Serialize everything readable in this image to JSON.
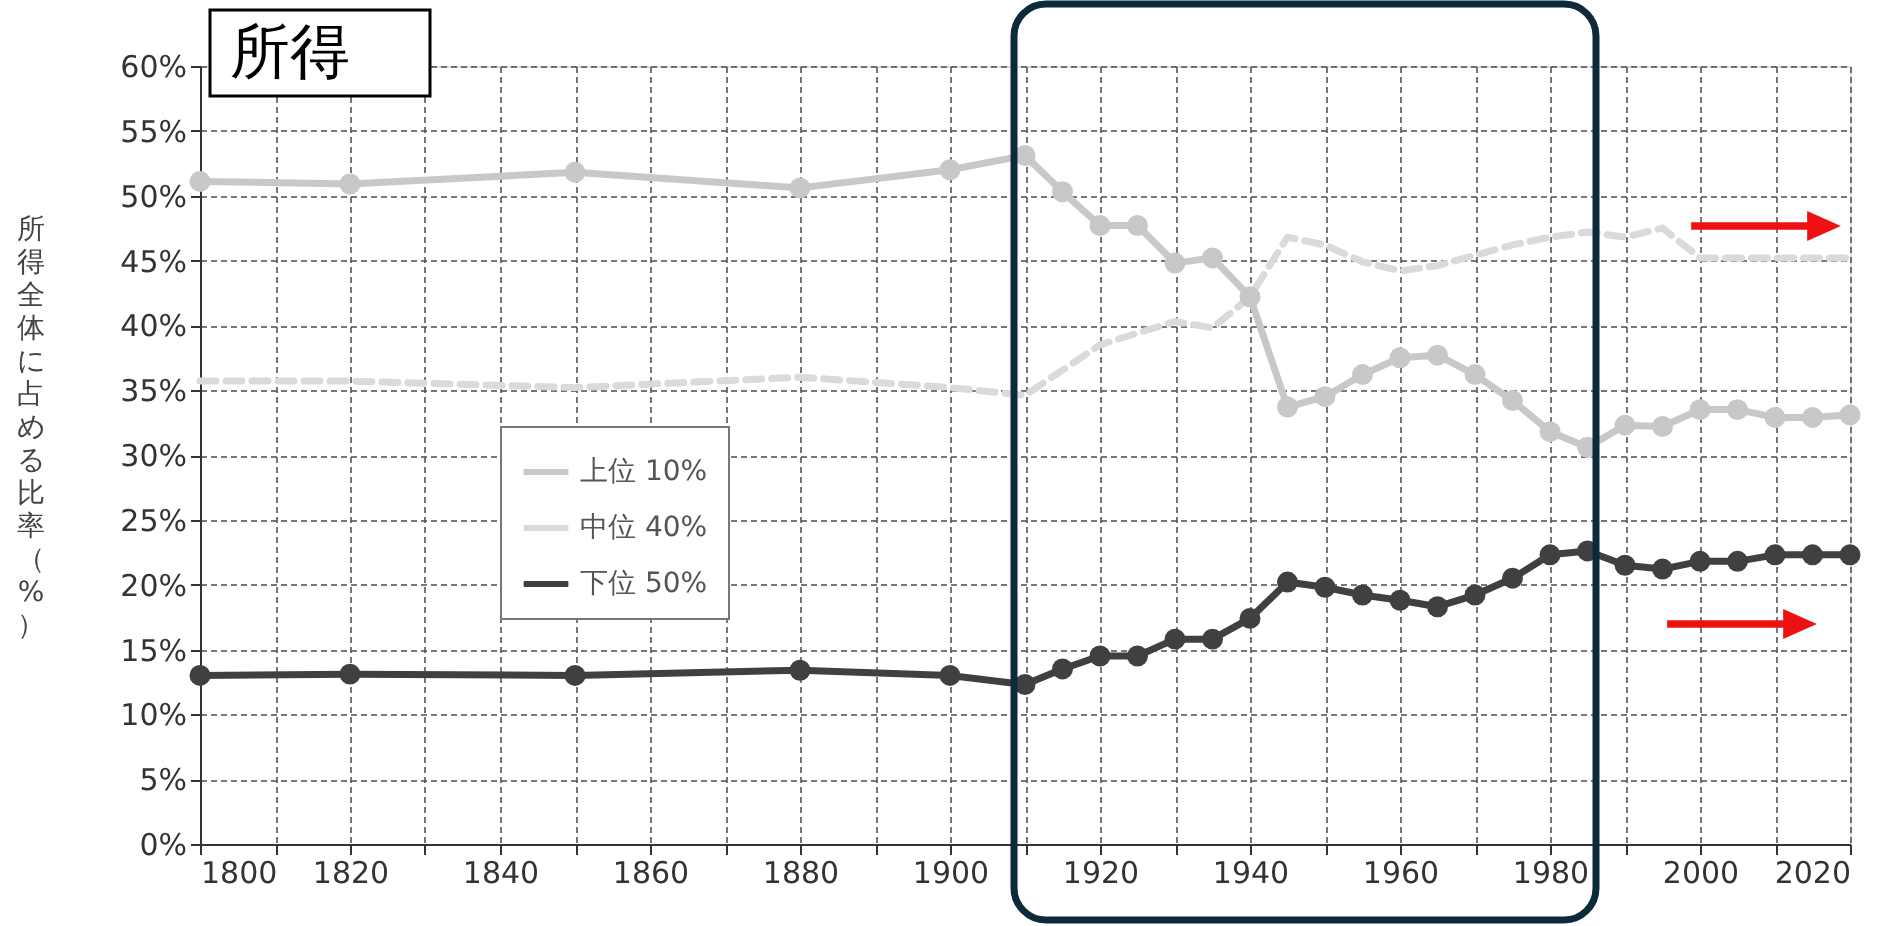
{
  "chart_data": {
    "type": "line",
    "title": "所得",
    "ylabel": "所得全体に占める比率（%）",
    "xlim": [
      1800,
      2020
    ],
    "xticks": [
      1800,
      {
        "value": 1810,
        "label": null
      },
      1820,
      {
        "value": 1830,
        "label": null
      },
      1840,
      {
        "value": 1850,
        "label": null
      },
      1860,
      {
        "value": 1870,
        "label": null
      },
      1880,
      {
        "value": 1890,
        "label": null
      },
      1900,
      {
        "value": 1910,
        "label": null
      },
      1920,
      {
        "value": 1930,
        "label": null
      },
      1940,
      {
        "value": 1950,
        "label": null
      },
      1960,
      {
        "value": 1970,
        "label": null
      },
      1980,
      {
        "value": 1990,
        "label": null
      },
      2000,
      {
        "value": 2010,
        "label": null
      },
      2020
    ],
    "ylim": [
      0,
      60
    ],
    "yticks": [
      {
        "value": 0,
        "label": "0%"
      },
      {
        "value": 5,
        "label": "5%"
      },
      {
        "value": 10,
        "label": "10%"
      },
      {
        "value": 15,
        "label": "15%"
      },
      {
        "value": 20,
        "label": "20%"
      },
      {
        "value": 25,
        "label": "25%"
      },
      {
        "value": 30,
        "label": "30%"
      },
      {
        "value": 35,
        "label": "35%"
      },
      {
        "value": 40,
        "label": "40%"
      },
      {
        "value": 45,
        "label": "45%"
      },
      {
        "value": 50,
        "label": "50%"
      },
      {
        "value": 55,
        "label": "55%"
      },
      {
        "value": 60,
        "label": "60%"
      }
    ],
    "grid": true,
    "legend": "left",
    "series": [
      {
        "name": "上位 10%",
        "color": "#c8c8c8",
        "marker": "circle",
        "line_style": "solid",
        "x": [
          1800,
          1820,
          1850,
          1880,
          1900,
          1910,
          1915,
          1920,
          1925,
          1930,
          1935,
          1940,
          1945,
          1950,
          1955,
          1960,
          1965,
          1970,
          1975,
          1980,
          1985,
          1990,
          1995,
          2000,
          2005,
          2010,
          2015,
          2020
        ],
        "values": [
          51.1,
          50.9,
          51.8,
          50.6,
          52.0,
          53.1,
          50.3,
          47.7,
          47.7,
          44.8,
          45.2,
          42.2,
          33.7,
          34.5,
          36.2,
          37.5,
          37.7,
          36.2,
          34.2,
          31.8,
          30.6,
          32.3,
          32.2,
          33.5,
          33.5,
          32.9,
          32.9,
          33.1
        ]
      },
      {
        "name": "中位 40%",
        "color": "#dadada",
        "marker": "none",
        "line_style": "dashed",
        "x": [
          1800,
          1820,
          1850,
          1880,
          1900,
          1910,
          1920,
          1930,
          1935,
          1940,
          1945,
          1950,
          1955,
          1960,
          1965,
          1970,
          1975,
          1980,
          1985,
          1990,
          1995,
          2000,
          2005,
          2010,
          2015,
          2020
        ],
        "values": [
          35.7,
          35.7,
          35.2,
          36.0,
          35.2,
          34.6,
          38.5,
          40.3,
          39.8,
          42.2,
          46.8,
          46.2,
          44.9,
          44.2,
          44.6,
          45.4,
          46.2,
          46.8,
          47.2,
          46.8,
          47.5,
          45.2,
          45.2,
          45.2,
          45.2,
          45.2
        ]
      },
      {
        "name": "下位 50%",
        "color": "#404040",
        "marker": "circle",
        "line_style": "solid",
        "x": [
          1800,
          1820,
          1850,
          1880,
          1900,
          1910,
          1915,
          1920,
          1925,
          1930,
          1935,
          1940,
          1945,
          1950,
          1955,
          1960,
          1965,
          1970,
          1975,
          1980,
          1985,
          1990,
          1995,
          2000,
          2005,
          2010,
          2015,
          2020
        ],
        "values": [
          13.0,
          13.1,
          13.0,
          13.4,
          13.0,
          12.3,
          13.5,
          14.5,
          14.5,
          15.8,
          15.8,
          17.4,
          20.2,
          19.8,
          19.2,
          18.8,
          18.3,
          19.2,
          20.5,
          22.3,
          22.6,
          21.5,
          21.2,
          21.8,
          21.8,
          22.3,
          22.3,
          22.3
        ]
      }
    ]
  }
}
